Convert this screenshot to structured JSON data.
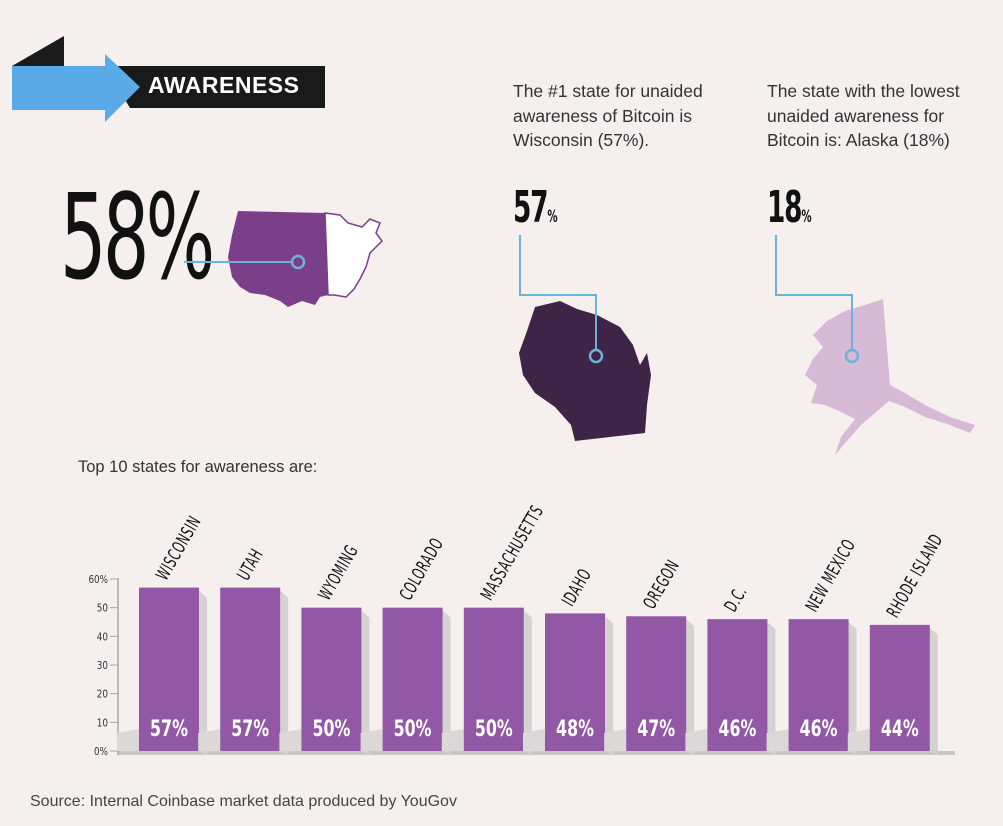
{
  "banner": {
    "label": "AWARENESS",
    "arrow_color": "#5aaae8",
    "bar_color": "#1a1a1a"
  },
  "national": {
    "value": "58%",
    "map_color": "#7b3f8a"
  },
  "highest": {
    "description": "The #1 state for unaided awareness of Bitcoin is Wisconsin (57%).",
    "number": "57",
    "unit": "%",
    "map_color": "#3e2447"
  },
  "lowest": {
    "description": "The state with the lowest unaided awareness for Bitcoin is: Alaska (18%)",
    "number": "18",
    "unit": "%",
    "map_color": "#d7bad6"
  },
  "connector_color": "#6bb3d9",
  "chart_title": "Top 10 states for awareness are:",
  "source": "Source:  Internal Coinbase market data produced by YouGov",
  "chart_data": {
    "type": "bar",
    "title": "Top 10 states for awareness are:",
    "categories": [
      "WISCONSIN",
      "UTAH",
      "WYOMING",
      "COLORADO",
      "MASSACHUSETTS",
      "IDAHO",
      "OREGON",
      "D.C.",
      "NEW MEXICO",
      "RHODE ISLAND"
    ],
    "values": [
      57,
      57,
      50,
      50,
      50,
      48,
      47,
      46,
      46,
      44
    ],
    "value_labels": [
      "57%",
      "57%",
      "50%",
      "50%",
      "50%",
      "48%",
      "47%",
      "46%",
      "46%",
      "44%"
    ],
    "yticks": [
      "0%",
      "10",
      "20",
      "30",
      "40",
      "50",
      "60%"
    ],
    "ylim": [
      0,
      60
    ],
    "bar_color": "#9358a5",
    "grid": false
  }
}
